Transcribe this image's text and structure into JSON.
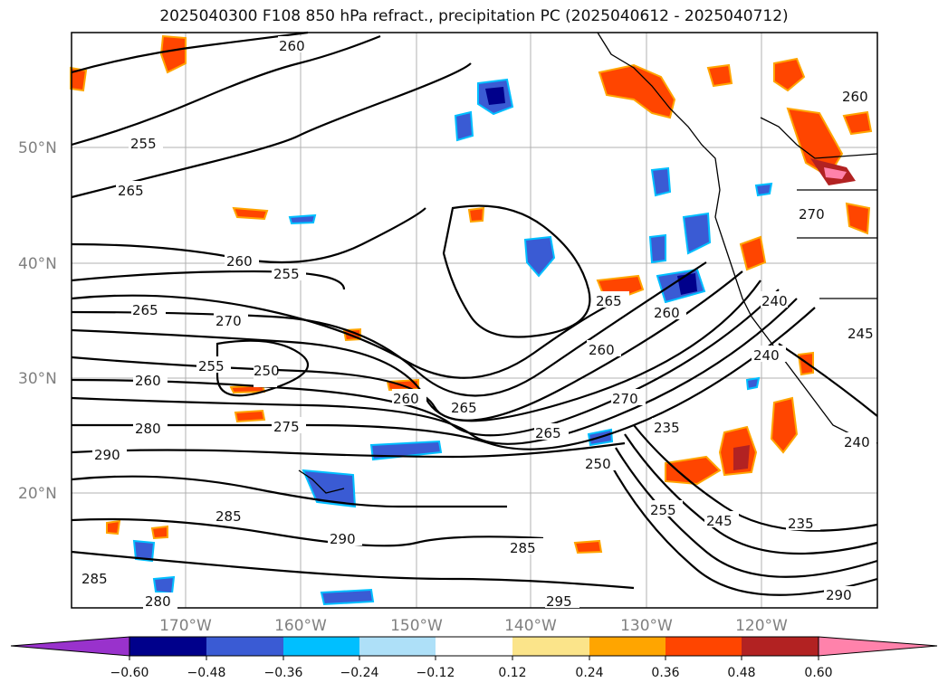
{
  "title": "2025040300 F108 850 hPa refract., precipitation PC (2025040612 - 2025040712)",
  "lat_labels": [
    "50°N",
    "40°N",
    "30°N",
    "20°N"
  ],
  "lon_labels": [
    "170°W",
    "160°W",
    "150°W",
    "140°W",
    "130°W",
    "120°W"
  ],
  "colorbar": {
    "ticks": [
      "−0.60",
      "−0.48",
      "−0.36",
      "−0.24",
      "−0.12",
      "0.12",
      "0.24",
      "0.36",
      "0.48",
      "0.60"
    ],
    "colors": [
      "#9932cc",
      "#00008b",
      "#3a5bd4",
      "#00bfff",
      "#aee0f8",
      "#ffffff",
      "#fbe48a",
      "#ffa500",
      "#ff4500",
      "#b22222",
      "#ff82ab"
    ]
  },
  "contour_labels": [
    "260",
    "255",
    "265",
    "260",
    "255",
    "265",
    "270",
    "255",
    "250",
    "260",
    "280",
    "275",
    "290",
    "285",
    "290",
    "280",
    "285",
    "260",
    "265",
    "270",
    "265",
    "260",
    "250",
    "235",
    "245",
    "255",
    "235",
    "240",
    "240",
    "260",
    "270",
    "245",
    "285",
    "295",
    "290",
    "265",
    "260",
    "240"
  ]
}
